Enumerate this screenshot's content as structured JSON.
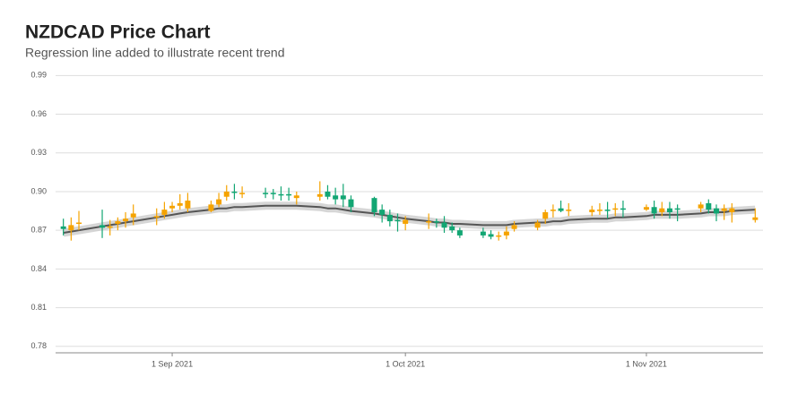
{
  "chart_data": {
    "type": "candlestick",
    "title": "NZDCAD Price Chart",
    "subtitle": "Regression line added to illustrate recent trend",
    "up_color": "#f5a300",
    "down_color": "#12a673",
    "trend_color": "#555555",
    "grid": true,
    "ylim": [
      0.775,
      0.993
    ],
    "yticks": [
      0.78,
      0.81,
      0.84,
      0.87,
      {
        "value": 0.9,
        "label": "0.90"
      },
      0.93,
      0.96,
      0.99
    ],
    "xlim": [
      "2021-08-17",
      "2021-11-16"
    ],
    "xticks": [
      {
        "value": "2021-09-01",
        "label": "1 Sep 2021"
      },
      {
        "value": "2021-10-01",
        "label": "1 Oct 2021"
      },
      {
        "value": "2021-11-01",
        "label": "1 Nov 2021"
      }
    ],
    "x": [
      "2021-08-18",
      "2021-08-19",
      "2021-08-20",
      "2021-08-23",
      "2021-08-24",
      "2021-08-25",
      "2021-08-26",
      "2021-08-27",
      "2021-08-30",
      "2021-08-31",
      "2021-09-01",
      "2021-09-02",
      "2021-09-03",
      "2021-09-06",
      "2021-09-07",
      "2021-09-08",
      "2021-09-09",
      "2021-09-10",
      "2021-09-13",
      "2021-09-14",
      "2021-09-15",
      "2021-09-16",
      "2021-09-17",
      "2021-09-20",
      "2021-09-21",
      "2021-09-22",
      "2021-09-23",
      "2021-09-24",
      "2021-09-27",
      "2021-09-28",
      "2021-09-29",
      "2021-09-30",
      "2021-10-01",
      "2021-10-04",
      "2021-10-05",
      "2021-10-06",
      "2021-10-07",
      "2021-10-08",
      "2021-10-11",
      "2021-10-12",
      "2021-10-13",
      "2021-10-14",
      "2021-10-15",
      "2021-10-18",
      "2021-10-19",
      "2021-10-20",
      "2021-10-21",
      "2021-10-22",
      "2021-10-25",
      "2021-10-26",
      "2021-10-27",
      "2021-10-28",
      "2021-10-29",
      "2021-11-01",
      "2021-11-02",
      "2021-11-03",
      "2021-11-04",
      "2021-11-05",
      "2021-11-08",
      "2021-11-09",
      "2021-11-10",
      "2021-11-11",
      "2021-11-12",
      "2021-11-15"
    ],
    "open": [
      0.873,
      0.87,
      0.875,
      0.874,
      0.872,
      0.875,
      0.877,
      0.88,
      0.88,
      0.882,
      0.887,
      0.889,
      0.887,
      0.885,
      0.89,
      0.896,
      0.9,
      0.899,
      0.899,
      0.899,
      0.898,
      0.898,
      0.895,
      0.896,
      0.9,
      0.897,
      0.897,
      0.894,
      0.895,
      0.886,
      0.882,
      0.878,
      0.875,
      0.876,
      0.877,
      0.876,
      0.873,
      0.87,
      0.869,
      0.867,
      0.865,
      0.866,
      0.871,
      0.872,
      0.879,
      0.885,
      0.887,
      0.885,
      0.884,
      0.885,
      0.886,
      0.886,
      0.887,
      0.886,
      0.888,
      0.884,
      0.887,
      0.887,
      0.887,
      0.891,
      0.887,
      0.885,
      0.884,
      0.878
    ],
    "high": [
      0.879,
      0.88,
      0.885,
      0.886,
      0.878,
      0.88,
      0.884,
      0.89,
      0.887,
      0.892,
      0.892,
      0.898,
      0.899,
      0.893,
      0.899,
      0.905,
      0.906,
      0.904,
      0.903,
      0.902,
      0.904,
      0.903,
      0.9,
      0.908,
      0.905,
      0.903,
      0.906,
      0.897,
      0.896,
      0.89,
      0.886,
      0.883,
      0.881,
      0.883,
      0.879,
      0.881,
      0.876,
      0.872,
      0.872,
      0.87,
      0.869,
      0.873,
      0.877,
      0.878,
      0.886,
      0.89,
      0.893,
      0.891,
      0.889,
      0.891,
      0.892,
      0.891,
      0.893,
      0.89,
      0.893,
      0.892,
      0.892,
      0.89,
      0.892,
      0.894,
      0.89,
      0.89,
      0.891,
      0.887
    ],
    "low": [
      0.866,
      0.862,
      0.87,
      0.864,
      0.866,
      0.87,
      0.872,
      0.874,
      0.874,
      0.879,
      0.884,
      0.886,
      0.884,
      0.884,
      0.888,
      0.893,
      0.894,
      0.895,
      0.895,
      0.894,
      0.893,
      0.893,
      0.89,
      0.893,
      0.894,
      0.89,
      0.888,
      0.884,
      0.881,
      0.876,
      0.873,
      0.869,
      0.87,
      0.871,
      0.872,
      0.868,
      0.868,
      0.864,
      0.864,
      0.863,
      0.862,
      0.863,
      0.869,
      0.87,
      0.875,
      0.88,
      0.884,
      0.881,
      0.881,
      0.882,
      0.879,
      0.881,
      0.88,
      0.885,
      0.879,
      0.881,
      0.879,
      0.877,
      0.884,
      0.883,
      0.877,
      0.878,
      0.876,
      0.876
    ],
    "close": [
      0.871,
      0.874,
      0.876,
      0.872,
      0.873,
      0.877,
      0.879,
      0.883,
      0.881,
      0.886,
      0.889,
      0.891,
      0.893,
      0.89,
      0.894,
      0.9,
      0.899,
      0.899,
      0.898,
      0.898,
      0.897,
      0.897,
      0.897,
      0.898,
      0.896,
      0.894,
      0.894,
      0.888,
      0.884,
      0.882,
      0.877,
      0.877,
      0.878,
      0.877,
      0.876,
      0.872,
      0.87,
      0.866,
      0.866,
      0.865,
      0.866,
      0.869,
      0.874,
      0.876,
      0.884,
      0.886,
      0.885,
      0.886,
      0.886,
      0.886,
      0.885,
      0.887,
      0.886,
      0.888,
      0.883,
      0.887,
      0.884,
      0.886,
      0.89,
      0.886,
      0.883,
      0.887,
      0.887,
      0.88
    ],
    "trend": [
      0.868,
      0.869,
      0.87,
      0.873,
      0.874,
      0.875,
      0.876,
      0.877,
      0.88,
      0.881,
      0.882,
      0.883,
      0.884,
      0.886,
      0.887,
      0.887,
      0.888,
      0.888,
      0.889,
      0.889,
      0.889,
      0.889,
      0.889,
      0.888,
      0.887,
      0.887,
      0.886,
      0.885,
      0.883,
      0.882,
      0.881,
      0.88,
      0.879,
      0.877,
      0.876,
      0.876,
      0.875,
      0.875,
      0.874,
      0.874,
      0.874,
      0.874,
      0.875,
      0.876,
      0.876,
      0.877,
      0.877,
      0.878,
      0.879,
      0.879,
      0.879,
      0.88,
      0.88,
      0.881,
      0.882,
      0.882,
      0.882,
      0.882,
      0.883,
      0.884,
      0.884,
      0.884,
      0.885,
      0.886
    ]
  }
}
